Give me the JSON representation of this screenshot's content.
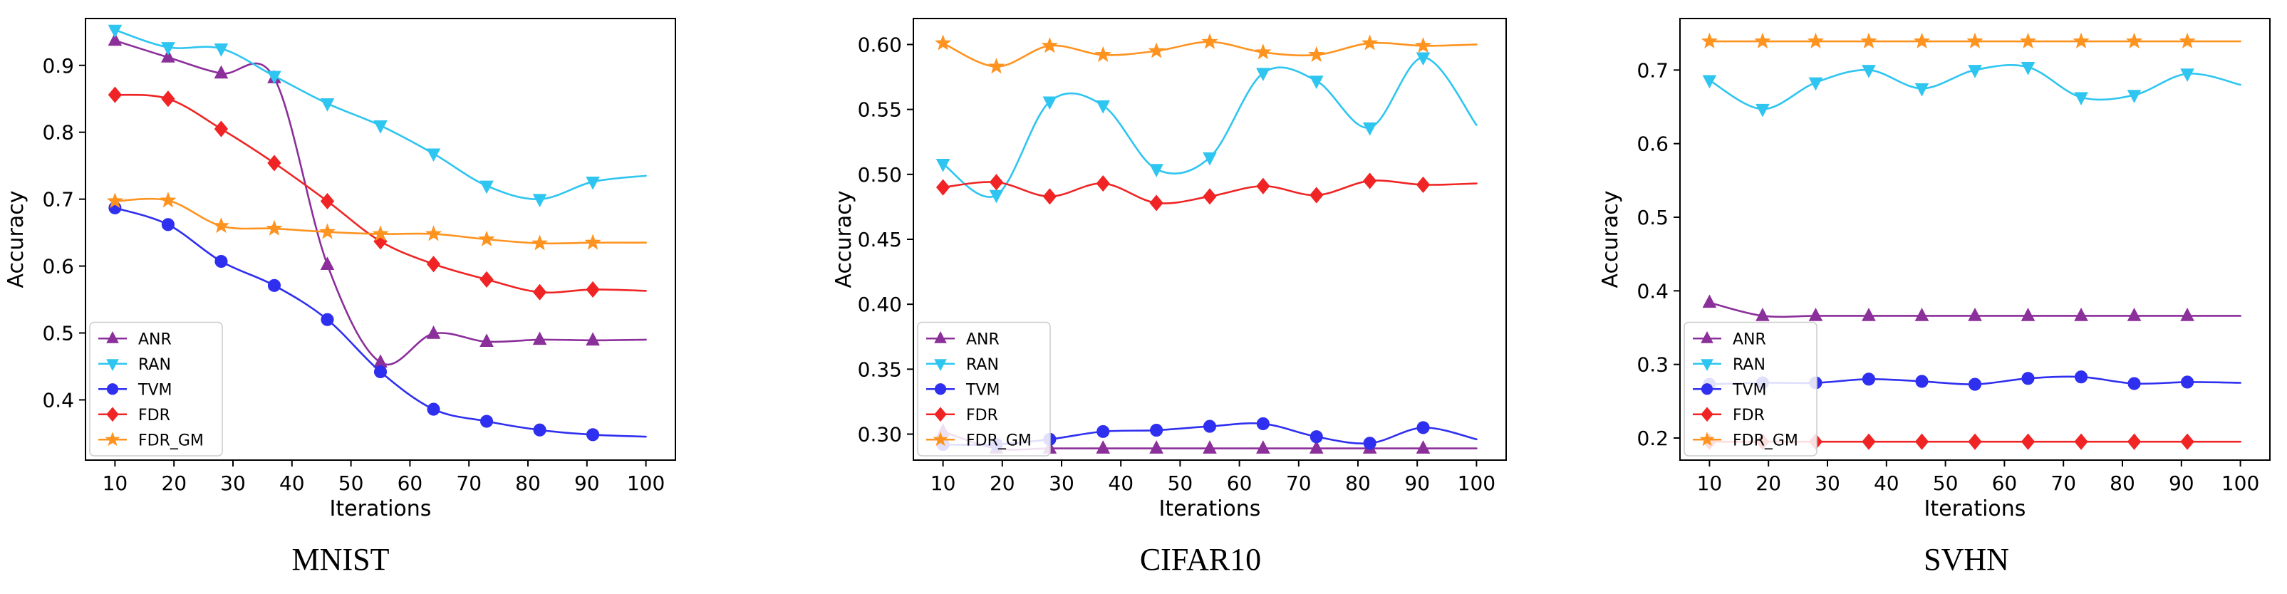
{
  "colors": {
    "ANR": "#8b2f9a",
    "RAN": "#2ec5f0",
    "TVM": "#2f2ff0",
    "FDR": "#f02424",
    "FDR_GM": "#ff9320"
  },
  "markers": {
    "ANR": "triangle-up",
    "RAN": "triangle-down",
    "TVM": "circle",
    "FDR": "diamond",
    "FDR_GM": "star"
  },
  "chart_data": [
    {
      "type": "line",
      "title": "MNIST",
      "xlabel": "Iterations",
      "ylabel": "Accuracy",
      "xlim": [
        5,
        105
      ],
      "ylim": [
        0.31,
        0.97
      ],
      "xticks": [
        10,
        20,
        30,
        40,
        50,
        60,
        70,
        80,
        90,
        100
      ],
      "yticks": [
        0.4,
        0.5,
        0.6,
        0.7,
        0.8,
        0.9
      ],
      "ytick_labels": [
        "0.4",
        "0.5",
        "0.6",
        "0.7",
        "0.8",
        "0.9"
      ],
      "legend_position": "lower-left",
      "x": [
        10,
        19,
        28,
        37,
        46,
        55,
        64,
        73,
        82,
        91,
        100
      ],
      "series": [
        {
          "name": "ANR",
          "values": [
            0.937,
            0.912,
            0.888,
            0.881,
            0.602,
            0.456,
            0.499,
            0.487,
            0.49,
            0.489,
            0.49
          ]
        },
        {
          "name": "RAN",
          "values": [
            0.953,
            0.927,
            0.925,
            0.884,
            0.843,
            0.81,
            0.768,
            0.72,
            0.7,
            0.726,
            0.735
          ]
        },
        {
          "name": "TVM",
          "values": [
            0.687,
            0.662,
            0.607,
            0.571,
            0.52,
            0.442,
            0.386,
            0.368,
            0.355,
            0.348,
            0.345
          ]
        },
        {
          "name": "FDR",
          "values": [
            0.856,
            0.85,
            0.805,
            0.754,
            0.697,
            0.637,
            0.603,
            0.58,
            0.561,
            0.565,
            0.563
          ]
        },
        {
          "name": "FDR_GM",
          "values": [
            0.697,
            0.698,
            0.66,
            0.656,
            0.651,
            0.648,
            0.648,
            0.64,
            0.634,
            0.635,
            0.635
          ]
        }
      ]
    },
    {
      "type": "line",
      "title": "CIFAR10",
      "xlabel": "Iterations",
      "ylabel": "Accuracy",
      "xlim": [
        5,
        105
      ],
      "ylim": [
        0.28,
        0.62
      ],
      "xticks": [
        10,
        20,
        30,
        40,
        50,
        60,
        70,
        80,
        90,
        100
      ],
      "yticks": [
        0.3,
        0.35,
        0.4,
        0.45,
        0.5,
        0.55,
        0.6
      ],
      "ytick_labels": [
        "0.30",
        "0.35",
        "0.40",
        "0.45",
        "0.50",
        "0.55",
        "0.60"
      ],
      "legend_position": "lower-left",
      "x": [
        10,
        19,
        28,
        37,
        46,
        55,
        64,
        73,
        82,
        91,
        100
      ],
      "series": [
        {
          "name": "ANR",
          "values": [
            0.302,
            0.289,
            0.289,
            0.289,
            0.289,
            0.289,
            0.289,
            0.289,
            0.289,
            0.289,
            0.289
          ]
        },
        {
          "name": "RAN",
          "values": [
            0.508,
            0.484,
            0.556,
            0.553,
            0.504,
            0.513,
            0.578,
            0.572,
            0.536,
            0.59,
            0.538
          ]
        },
        {
          "name": "TVM",
          "values": [
            0.292,
            0.292,
            0.296,
            0.302,
            0.303,
            0.306,
            0.308,
            0.298,
            0.293,
            0.305,
            0.296
          ]
        },
        {
          "name": "FDR",
          "values": [
            0.49,
            0.494,
            0.483,
            0.493,
            0.478,
            0.483,
            0.491,
            0.484,
            0.495,
            0.492,
            0.493
          ]
        },
        {
          "name": "FDR_GM",
          "values": [
            0.601,
            0.583,
            0.599,
            0.592,
            0.595,
            0.602,
            0.594,
            0.592,
            0.601,
            0.599,
            0.6
          ]
        }
      ]
    },
    {
      "type": "line",
      "title": "SVHN",
      "xlabel": "Iterations",
      "ylabel": "Accuracy",
      "xlim": [
        5,
        105
      ],
      "ylim": [
        0.17,
        0.77
      ],
      "xticks": [
        10,
        20,
        30,
        40,
        50,
        60,
        70,
        80,
        90,
        100
      ],
      "yticks": [
        0.2,
        0.3,
        0.4,
        0.5,
        0.6,
        0.7
      ],
      "ytick_labels": [
        "0.2",
        "0.3",
        "0.4",
        "0.5",
        "0.6",
        "0.7"
      ],
      "legend_position": "lower-left",
      "x": [
        10,
        19,
        28,
        37,
        46,
        55,
        64,
        73,
        82,
        91,
        100
      ],
      "series": [
        {
          "name": "ANR",
          "values": [
            0.384,
            0.366,
            0.366,
            0.366,
            0.366,
            0.366,
            0.366,
            0.366,
            0.366,
            0.366,
            0.366
          ]
        },
        {
          "name": "RAN",
          "values": [
            0.686,
            0.647,
            0.683,
            0.7,
            0.675,
            0.7,
            0.704,
            0.663,
            0.666,
            0.695,
            0.68
          ]
        },
        {
          "name": "TVM",
          "values": [
            0.273,
            0.275,
            0.275,
            0.28,
            0.277,
            0.273,
            0.281,
            0.283,
            0.274,
            0.276,
            0.275
          ]
        },
        {
          "name": "FDR",
          "values": [
            0.195,
            0.195,
            0.195,
            0.195,
            0.195,
            0.195,
            0.195,
            0.195,
            0.195,
            0.195,
            0.195
          ]
        },
        {
          "name": "FDR_GM",
          "values": [
            0.739,
            0.739,
            0.739,
            0.739,
            0.739,
            0.739,
            0.739,
            0.739,
            0.739,
            0.739,
            0.739
          ]
        }
      ]
    }
  ]
}
